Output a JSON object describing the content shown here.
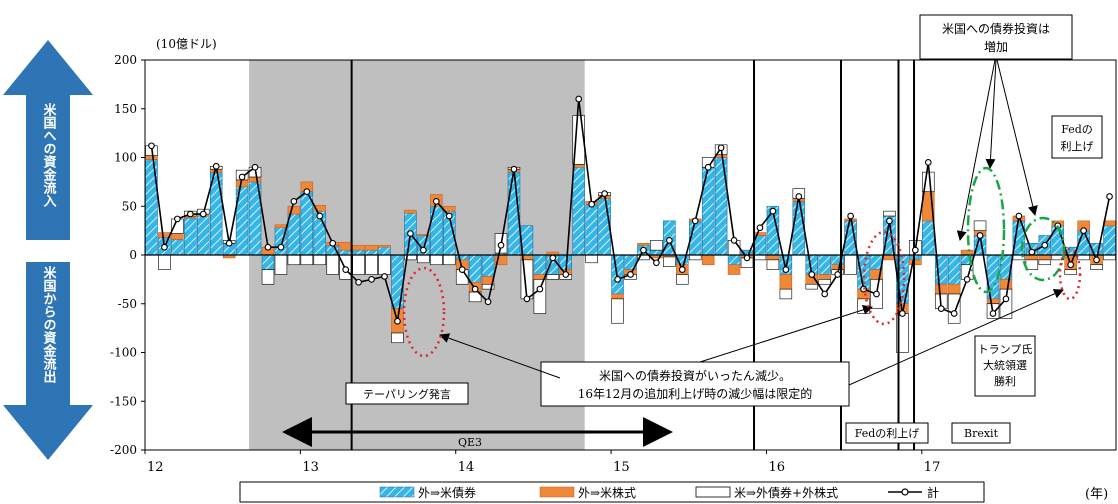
{
  "unit_label": "(10億ドル)",
  "year_label": "(年)",
  "arrows": {
    "inflow_label": "米国への資金流入",
    "outflow_label": "米国からの資金流出",
    "inflow_color": "#2E75B6",
    "outflow_color": "#2E75B6"
  },
  "annotations": {
    "tapering": "テーパリング発言",
    "qe3": "QE3",
    "fed_hike": "Fedの利上げ",
    "brexit": "Brexit",
    "trump": [
      "トランプ氏",
      "大統領選",
      "勝利"
    ],
    "fed_hike2": [
      "Fedの",
      "利上げ"
    ],
    "bond_increase": [
      "米国への債券投資は",
      "増加"
    ],
    "bond_decrease": [
      "米国への債券投資がいったん減少。",
      "16年12月の追加利上げ時の減少幅は限定的"
    ]
  },
  "colors": {
    "bond": "#35B6E6",
    "stock": "#F0883A",
    "outward": "#FFFFFF",
    "total": "#000000",
    "shade": "#BFBFBF",
    "dotted_red": "#E0262A",
    "dashed_green": "#1BA54A"
  },
  "chart_data": {
    "type": "bar",
    "ylim": [
      -200,
      200
    ],
    "yticks": [
      200,
      150,
      100,
      50,
      0,
      -50,
      -100,
      -150,
      -200
    ],
    "xticks": [
      "12",
      "13",
      "14",
      "15",
      "16",
      "17"
    ],
    "x_start": 2012.0,
    "legend": {
      "placement": "bottom",
      "bond": "外⇒米債券",
      "stock": "外⇒米株式",
      "outward": "米⇒外債券+外株式",
      "total": "計"
    },
    "series": [
      {
        "name": "外⇒米債券",
        "values": [
          98,
          18,
          16,
          38,
          40,
          85,
          12,
          70,
          75,
          -15,
          28,
          42,
          65,
          45,
          10,
          5,
          5,
          5,
          8,
          -55,
          43,
          20,
          50,
          45,
          -5,
          -28,
          -22,
          2,
          85,
          30,
          -20,
          -20,
          -15,
          90,
          52,
          58,
          -40,
          -15,
          10,
          5,
          35,
          -10,
          35,
          90,
          100,
          -10,
          5,
          20,
          50,
          -20,
          55,
          -20,
          -20,
          -10,
          35,
          -35,
          -15,
          40,
          -50,
          -5,
          35,
          -30,
          -30,
          -10,
          20,
          -45,
          -25,
          35,
          12,
          20,
          30,
          8,
          25,
          12,
          30
        ]
      },
      {
        "name": "外⇒米株式",
        "values": [
          4,
          5,
          6,
          2,
          2,
          3,
          -3,
          7,
          5,
          8,
          3,
          8,
          10,
          6,
          3,
          8,
          5,
          5,
          2,
          -25,
          3,
          1,
          12,
          5,
          -10,
          -10,
          -8,
          -10,
          3,
          -5,
          -5,
          3,
          -5,
          3,
          3,
          3,
          -5,
          -5,
          2,
          -3,
          -2,
          -10,
          2,
          -10,
          3,
          -10,
          -3,
          3,
          -5,
          -15,
          3,
          -10,
          -5,
          -5,
          2,
          -10,
          -10,
          -5,
          -10,
          -5,
          30,
          -10,
          -10,
          5,
          5,
          -5,
          -10,
          5,
          -5,
          -5,
          5,
          -15,
          10,
          -10,
          5
        ]
      },
      {
        "name": "米⇒外債券+外株式",
        "values": [
          10,
          -15,
          15,
          5,
          5,
          3,
          3,
          10,
          10,
          -15,
          -20,
          -10,
          -10,
          -10,
          -20,
          -25,
          -20,
          -20,
          -20,
          -10,
          -5,
          -8,
          -10,
          -10,
          -15,
          -10,
          -5,
          20,
          2,
          -40,
          -35,
          -5,
          -5,
          50,
          -8,
          3,
          -25,
          -5,
          -5,
          10,
          -10,
          -10,
          -5,
          10,
          10,
          15,
          -10,
          -5,
          -10,
          -10,
          10,
          -5,
          -5,
          -5,
          -20,
          -15,
          -30,
          5,
          -40,
          15,
          20,
          -15,
          -30,
          -15,
          10,
          -15,
          -30,
          -5,
          -10,
          -5,
          -5,
          -5,
          -5,
          -5,
          -5
        ]
      },
      {
        "name": "計",
        "values": [
          112,
          8,
          37,
          42,
          42,
          91,
          12,
          80,
          90,
          8,
          8,
          55,
          65,
          40,
          12,
          -15,
          -28,
          -25,
          -22,
          -68,
          22,
          5,
          55,
          40,
          -15,
          -35,
          -48,
          10,
          88,
          -45,
          -35,
          -3,
          -20,
          160,
          52,
          63,
          -25,
          -20,
          5,
          -8,
          15,
          -15,
          35,
          90,
          110,
          15,
          -3,
          28,
          45,
          -15,
          60,
          -20,
          -40,
          -20,
          40,
          -35,
          -40,
          35,
          -60,
          5,
          95,
          -55,
          -60,
          -25,
          20,
          -60,
          -45,
          40,
          3,
          10,
          30,
          -10,
          25,
          -5,
          60
        ]
      }
    ]
  }
}
